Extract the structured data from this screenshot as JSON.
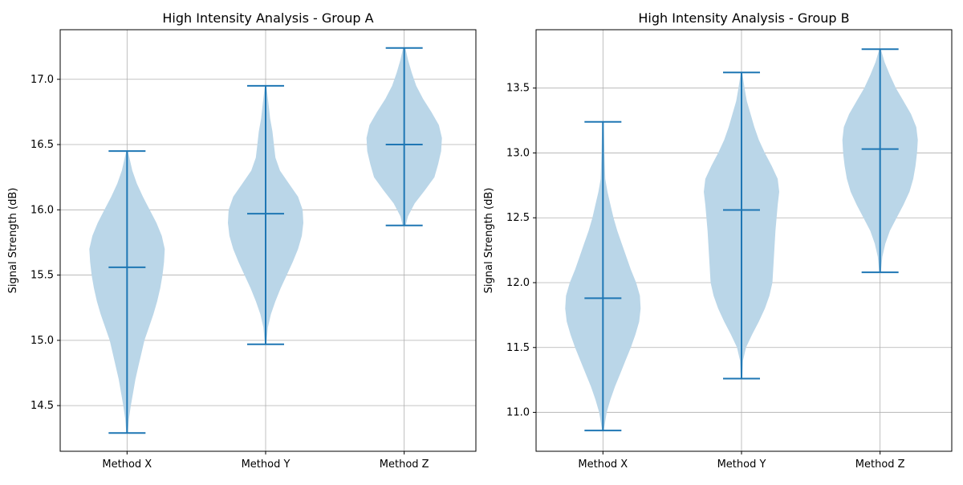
{
  "chart_data": [
    {
      "type": "violin",
      "title": "High Intensity Analysis - Group A",
      "xlabel": "",
      "ylabel": "Signal Strength (dB)",
      "categories": [
        "Method X",
        "Method Y",
        "Method Z"
      ],
      "ylim": [
        14.15,
        17.38
      ],
      "yticks": [
        14.5,
        15.0,
        15.5,
        16.0,
        16.5,
        17.0
      ],
      "grid": true,
      "color": "#1f77b4",
      "body_color": "#bad6e8",
      "series": [
        {
          "category": "Method X",
          "min": 14.29,
          "median": 15.56,
          "max": 16.45,
          "density": [
            [
              14.29,
              0.02
            ],
            [
              14.4,
              0.05
            ],
            [
              14.5,
              0.1
            ],
            [
              14.6,
              0.16
            ],
            [
              14.7,
              0.22
            ],
            [
              14.8,
              0.3
            ],
            [
              14.9,
              0.38
            ],
            [
              15.0,
              0.46
            ],
            [
              15.1,
              0.58
            ],
            [
              15.2,
              0.7
            ],
            [
              15.3,
              0.8
            ],
            [
              15.4,
              0.88
            ],
            [
              15.5,
              0.94
            ],
            [
              15.6,
              0.98
            ],
            [
              15.7,
              1.0
            ],
            [
              15.8,
              0.92
            ],
            [
              15.9,
              0.78
            ],
            [
              16.0,
              0.6
            ],
            [
              16.1,
              0.42
            ],
            [
              16.2,
              0.26
            ],
            [
              16.3,
              0.14
            ],
            [
              16.4,
              0.06
            ],
            [
              16.45,
              0.02
            ]
          ]
        },
        {
          "category": "Method Y",
          "min": 14.97,
          "median": 15.97,
          "max": 16.95,
          "density": [
            [
              14.97,
              0.02
            ],
            [
              15.1,
              0.06
            ],
            [
              15.2,
              0.14
            ],
            [
              15.3,
              0.26
            ],
            [
              15.4,
              0.4
            ],
            [
              15.5,
              0.56
            ],
            [
              15.6,
              0.72
            ],
            [
              15.7,
              0.86
            ],
            [
              15.8,
              0.96
            ],
            [
              15.9,
              1.0
            ],
            [
              16.0,
              0.98
            ],
            [
              16.1,
              0.86
            ],
            [
              16.2,
              0.62
            ],
            [
              16.3,
              0.38
            ],
            [
              16.4,
              0.26
            ],
            [
              16.5,
              0.22
            ],
            [
              16.6,
              0.18
            ],
            [
              16.7,
              0.12
            ],
            [
              16.8,
              0.08
            ],
            [
              16.9,
              0.04
            ],
            [
              16.95,
              0.02
            ]
          ]
        },
        {
          "category": "Method Z",
          "min": 15.88,
          "median": 16.5,
          "max": 17.24,
          "density": [
            [
              15.88,
              0.04
            ],
            [
              15.95,
              0.1
            ],
            [
              16.05,
              0.28
            ],
            [
              16.15,
              0.55
            ],
            [
              16.25,
              0.8
            ],
            [
              16.35,
              0.9
            ],
            [
              16.45,
              0.98
            ],
            [
              16.55,
              1.0
            ],
            [
              16.65,
              0.92
            ],
            [
              16.75,
              0.72
            ],
            [
              16.85,
              0.5
            ],
            [
              16.95,
              0.32
            ],
            [
              17.05,
              0.2
            ],
            [
              17.15,
              0.1
            ],
            [
              17.24,
              0.03
            ]
          ]
        }
      ]
    },
    {
      "type": "violin",
      "title": "High Intensity Analysis - Group B",
      "xlabel": "",
      "ylabel": "Signal Strength (dB)",
      "categories": [
        "Method X",
        "Method Y",
        "Method Z"
      ],
      "ylim": [
        10.7,
        13.95
      ],
      "yticks": [
        11.0,
        11.5,
        12.0,
        12.5,
        13.0,
        13.5
      ],
      "grid": true,
      "color": "#1f77b4",
      "body_color": "#bad6e8",
      "series": [
        {
          "category": "Method X",
          "min": 10.86,
          "median": 11.88,
          "max": 13.24,
          "density": [
            [
              10.86,
              0.02
            ],
            [
              11.0,
              0.1
            ],
            [
              11.1,
              0.2
            ],
            [
              11.2,
              0.32
            ],
            [
              11.3,
              0.46
            ],
            [
              11.4,
              0.6
            ],
            [
              11.5,
              0.74
            ],
            [
              11.6,
              0.86
            ],
            [
              11.7,
              0.96
            ],
            [
              11.8,
              1.0
            ],
            [
              11.9,
              0.98
            ],
            [
              12.0,
              0.88
            ],
            [
              12.1,
              0.74
            ],
            [
              12.2,
              0.62
            ],
            [
              12.3,
              0.5
            ],
            [
              12.4,
              0.38
            ],
            [
              12.5,
              0.28
            ],
            [
              12.6,
              0.2
            ],
            [
              12.7,
              0.12
            ],
            [
              12.8,
              0.06
            ],
            [
              13.0,
              0.04
            ],
            [
              13.24,
              0.02
            ]
          ]
        },
        {
          "category": "Method Y",
          "min": 11.26,
          "median": 12.56,
          "max": 13.62,
          "density": [
            [
              11.26,
              0.02
            ],
            [
              11.4,
              0.04
            ],
            [
              11.5,
              0.12
            ],
            [
              11.6,
              0.28
            ],
            [
              11.7,
              0.46
            ],
            [
              11.8,
              0.62
            ],
            [
              11.9,
              0.74
            ],
            [
              12.0,
              0.82
            ],
            [
              12.2,
              0.86
            ],
            [
              12.4,
              0.9
            ],
            [
              12.6,
              0.96
            ],
            [
              12.7,
              1.0
            ],
            [
              12.8,
              0.96
            ],
            [
              12.9,
              0.8
            ],
            [
              13.0,
              0.62
            ],
            [
              13.1,
              0.46
            ],
            [
              13.2,
              0.34
            ],
            [
              13.3,
              0.24
            ],
            [
              13.4,
              0.14
            ],
            [
              13.5,
              0.08
            ],
            [
              13.62,
              0.02
            ]
          ]
        },
        {
          "category": "Method Z",
          "min": 12.08,
          "median": 13.03,
          "max": 13.8,
          "density": [
            [
              12.08,
              0.02
            ],
            [
              12.2,
              0.06
            ],
            [
              12.3,
              0.14
            ],
            [
              12.4,
              0.26
            ],
            [
              12.5,
              0.44
            ],
            [
              12.6,
              0.62
            ],
            [
              12.7,
              0.78
            ],
            [
              12.8,
              0.88
            ],
            [
              12.9,
              0.94
            ],
            [
              13.0,
              0.98
            ],
            [
              13.1,
              1.0
            ],
            [
              13.2,
              0.96
            ],
            [
              13.3,
              0.82
            ],
            [
              13.4,
              0.62
            ],
            [
              13.5,
              0.42
            ],
            [
              13.6,
              0.26
            ],
            [
              13.7,
              0.12
            ],
            [
              13.8,
              0.02
            ]
          ]
        }
      ]
    }
  ]
}
